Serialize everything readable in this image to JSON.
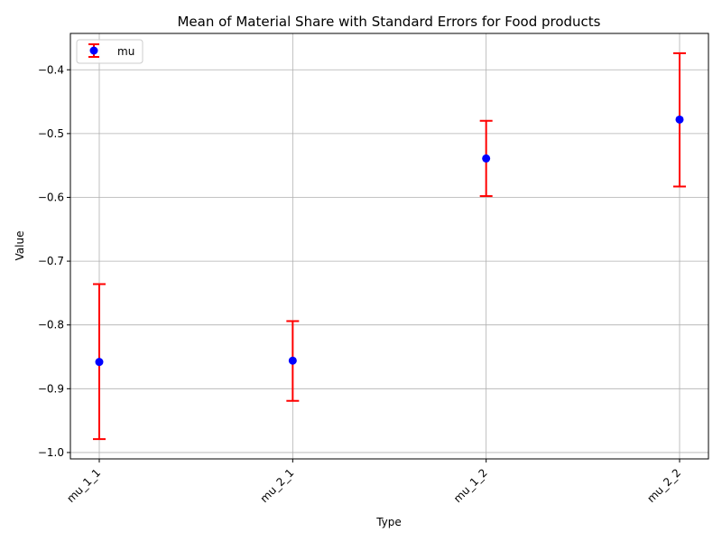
{
  "chart_data": {
    "type": "scatter",
    "title": "Mean of Material Share with Standard Errors for Food products",
    "xlabel": "Type",
    "ylabel": "Value",
    "categories": [
      "mu_1_1",
      "mu_2_1",
      "mu_1_2",
      "mu_2_2"
    ],
    "series": [
      {
        "name": "mu",
        "values": [
          -0.858,
          -0.856,
          -0.539,
          -0.478
        ],
        "err_low": [
          -0.979,
          -0.919,
          -0.598,
          -0.583
        ],
        "err_high": [
          -0.736,
          -0.794,
          -0.48,
          -0.374
        ],
        "marker_color": "#0000ff",
        "error_color": "#ff0000"
      }
    ],
    "ylim": [
      -1.01,
      -0.343
    ],
    "yticks": [
      -1.0,
      -0.9,
      -0.8,
      -0.7,
      -0.6,
      -0.5,
      -0.4
    ],
    "ytick_labels": [
      "−1.0",
      "−0.9",
      "−0.8",
      "−0.7",
      "−0.6",
      "−0.5",
      "−0.4"
    ],
    "grid": true,
    "legend_position": "top-left"
  }
}
